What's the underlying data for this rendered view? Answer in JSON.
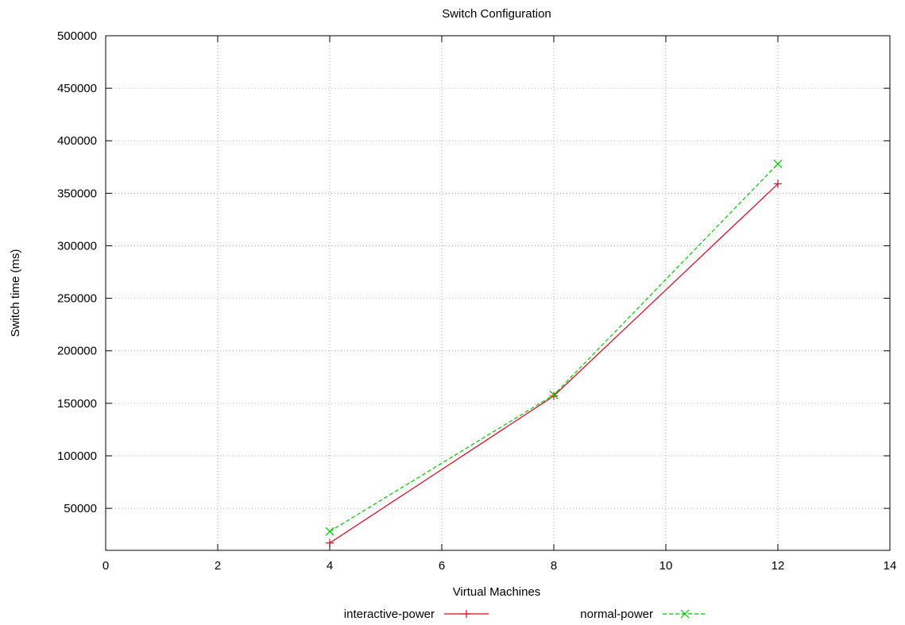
{
  "chart_data": {
    "type": "line",
    "title": "Switch Configuration",
    "xlabel": "Virtual Machines",
    "ylabel": "Switch time (ms)",
    "xlim": [
      0,
      14
    ],
    "ylim": [
      10000,
      500000
    ],
    "xticks": [
      0,
      2,
      4,
      6,
      8,
      10,
      12,
      14
    ],
    "yticks": [
      50000,
      100000,
      150000,
      200000,
      250000,
      300000,
      350000,
      400000,
      450000,
      500000
    ],
    "grid": true,
    "legend_position": "bottom",
    "series": [
      {
        "name": "interactive-power",
        "color": "#e0001b",
        "marker": "plus",
        "dash": "solid",
        "x": [
          4,
          8,
          12
        ],
        "y": [
          17000,
          157000,
          359000
        ]
      },
      {
        "name": "normal-power",
        "color": "#00c800",
        "marker": "cross",
        "dash": "dashed",
        "x": [
          4,
          8,
          12
        ],
        "y": [
          28000,
          158000,
          378000
        ]
      }
    ]
  }
}
